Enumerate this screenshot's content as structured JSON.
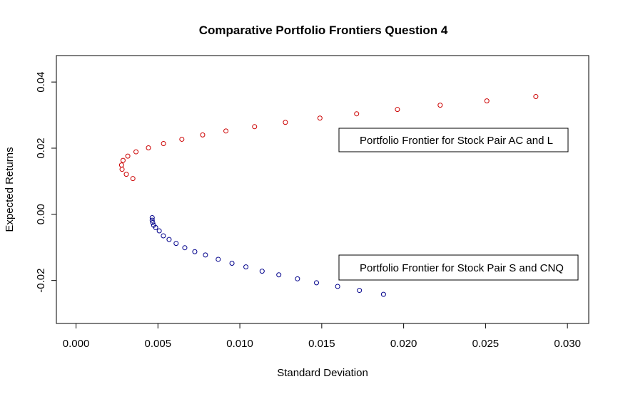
{
  "chart_data": {
    "type": "scatter",
    "title": "Comparative Portfolio Frontiers Question 4",
    "xlabel": "Standard Deviation",
    "ylabel": "Expected Returns",
    "xlim": [
      -0.0012,
      0.0313
    ],
    "ylim": [
      -0.033,
      0.048
    ],
    "x_ticks": [
      0.0,
      0.005,
      0.01,
      0.015,
      0.02,
      0.025,
      0.03
    ],
    "x_tick_labels": [
      "0.000",
      "0.005",
      "0.010",
      "0.015",
      "0.020",
      "0.025",
      "0.030"
    ],
    "y_ticks": [
      -0.02,
      0.0,
      0.02,
      0.04
    ],
    "y_tick_labels": [
      "-0.02",
      "0.00",
      "0.02",
      "0.04"
    ],
    "grid": false,
    "marker": "open-circle",
    "series": [
      {
        "name": "Portfolio Frontier for Stock Pair AC and L",
        "color": "#cc0000",
        "points": [
          [
            0.00347,
            0.0108
          ],
          [
            0.00307,
            0.0121
          ],
          [
            0.00281,
            0.0136
          ],
          [
            0.00278,
            0.0149
          ],
          [
            0.00287,
            0.0163
          ],
          [
            0.00316,
            0.0176
          ],
          [
            0.00366,
            0.0189
          ],
          [
            0.00442,
            0.0201
          ],
          [
            0.00534,
            0.0214
          ],
          [
            0.00646,
            0.0227
          ],
          [
            0.00773,
            0.024
          ],
          [
            0.00915,
            0.0252
          ],
          [
            0.0109,
            0.0265
          ],
          [
            0.01278,
            0.0278
          ],
          [
            0.01489,
            0.0291
          ],
          [
            0.01713,
            0.0304
          ],
          [
            0.01962,
            0.0317
          ],
          [
            0.02223,
            0.033
          ],
          [
            0.02508,
            0.0343
          ],
          [
            0.02807,
            0.0356
          ]
        ]
      },
      {
        "name": "Portfolio Frontier for Stock Pair S and CNQ",
        "color": "#00008b",
        "points": [
          [
            0.00465,
            -0.001
          ],
          [
            0.00465,
            -0.0018
          ],
          [
            0.00468,
            -0.0025
          ],
          [
            0.00474,
            -0.0033
          ],
          [
            0.00486,
            -0.004
          ],
          [
            0.00508,
            -0.005
          ],
          [
            0.00533,
            -0.0065
          ],
          [
            0.00568,
            -0.0076
          ],
          [
            0.00611,
            -0.0088
          ],
          [
            0.00664,
            -0.0101
          ],
          [
            0.00725,
            -0.0113
          ],
          [
            0.0079,
            -0.0123
          ],
          [
            0.00868,
            -0.0136
          ],
          [
            0.00952,
            -0.0148
          ],
          [
            0.01037,
            -0.0159
          ],
          [
            0.01136,
            -0.0172
          ],
          [
            0.01238,
            -0.0183
          ],
          [
            0.01352,
            -0.0195
          ],
          [
            0.01468,
            -0.0207
          ],
          [
            0.01597,
            -0.0218
          ],
          [
            0.0173,
            -0.023
          ],
          [
            0.01877,
            -0.0242
          ]
        ]
      }
    ],
    "legends": [
      {
        "text": "Portfolio Frontier for Stock Pair AC and L",
        "placement": "upper-right"
      },
      {
        "text": "Portfolio Frontier for Stock Pair S and CNQ",
        "placement": "lower-right"
      }
    ]
  }
}
